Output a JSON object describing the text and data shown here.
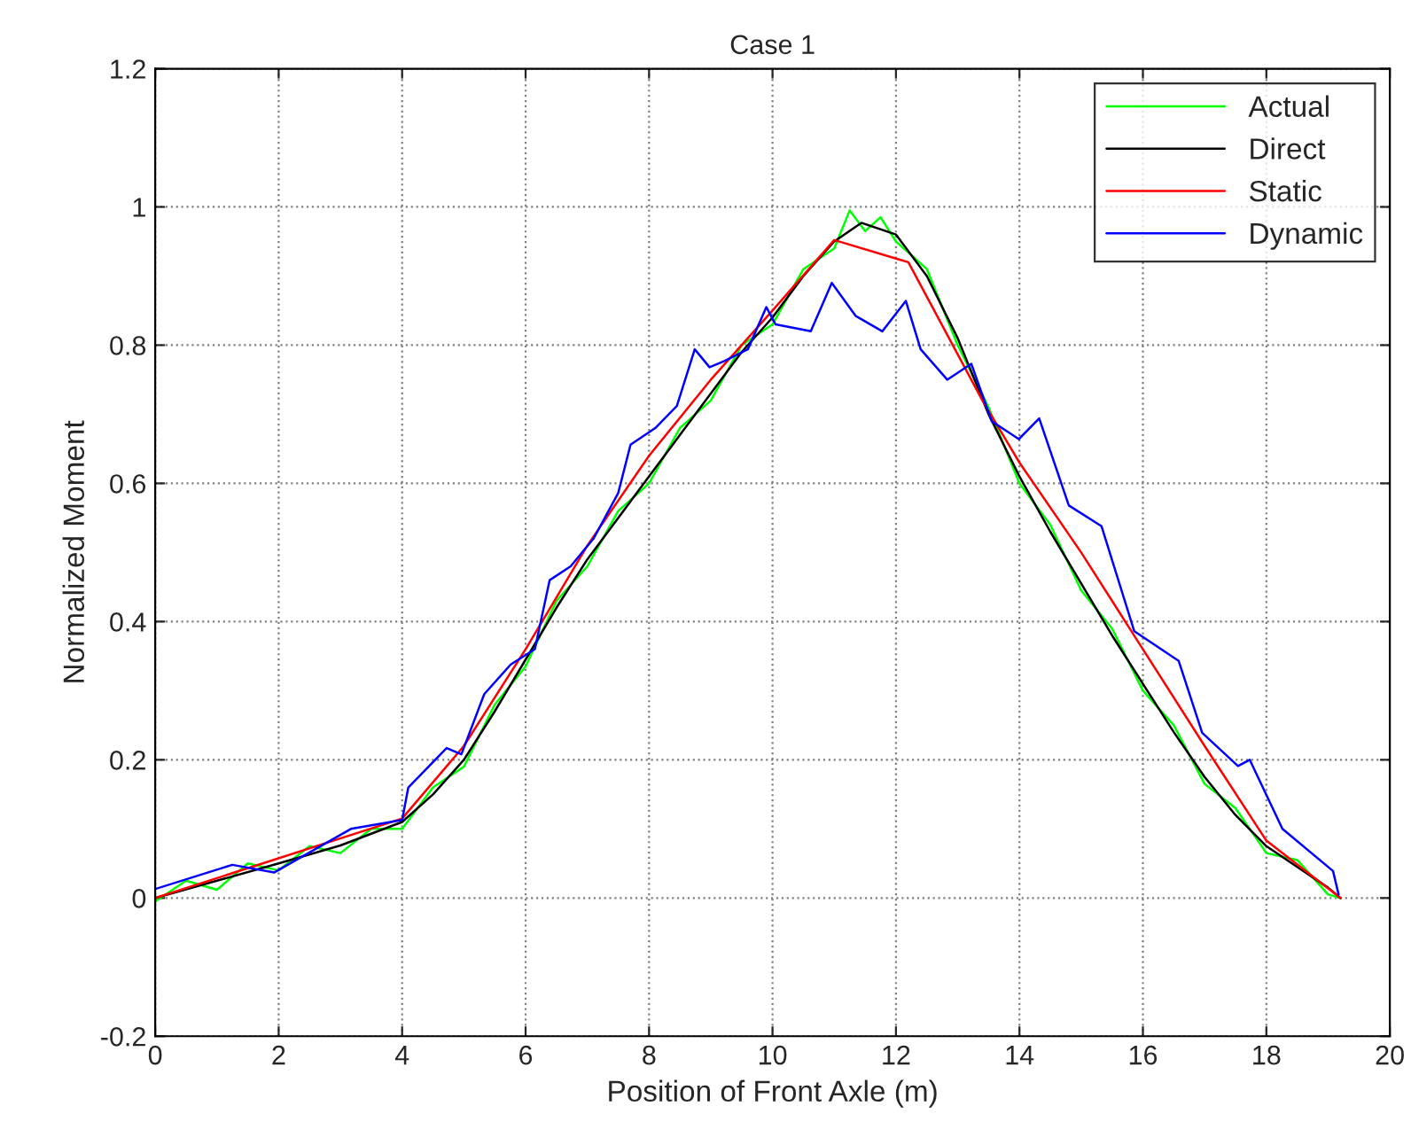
{
  "chart_data": {
    "type": "line",
    "title": "Case 1",
    "xlabel": "Position of Front Axle (m)",
    "ylabel": "Normalized Moment",
    "xlim": [
      0,
      20
    ],
    "xticks": [
      0,
      2,
      4,
      6,
      8,
      10,
      12,
      14,
      16,
      18,
      20
    ],
    "ylim": [
      -0.2,
      1.2
    ],
    "yticks": [
      -0.2,
      0,
      0.2,
      0.4,
      0.6,
      0.8,
      1,
      1.2
    ],
    "grid": true,
    "legend": "top right",
    "line_style": "solid",
    "marker": "none",
    "series": [
      {
        "name": "Actual",
        "color": "#00ff00",
        "x": [
          0,
          0.5,
          1,
          1.5,
          2,
          2.5,
          3,
          3.5,
          4,
          4.5,
          5,
          5.5,
          6,
          6.5,
          7,
          7.5,
          8,
          8.5,
          9,
          9.5,
          10,
          10.5,
          11,
          11.25,
          11.5,
          11.75,
          12,
          12.5,
          13,
          13.5,
          14,
          14.5,
          15,
          15.5,
          16,
          16.5,
          17,
          17.5,
          18,
          18.5,
          19,
          19.2
        ],
        "values": [
          -0.005,
          0.025,
          0.012,
          0.05,
          0.04,
          0.075,
          0.065,
          0.1,
          0.1,
          0.16,
          0.19,
          0.28,
          0.335,
          0.43,
          0.48,
          0.56,
          0.6,
          0.68,
          0.72,
          0.8,
          0.83,
          0.91,
          0.94,
          0.995,
          0.965,
          0.985,
          0.95,
          0.91,
          0.8,
          0.71,
          0.6,
          0.54,
          0.445,
          0.39,
          0.3,
          0.25,
          0.165,
          0.13,
          0.065,
          0.055,
          0.005,
          0.0
        ]
      },
      {
        "name": "Direct",
        "color": "#000000",
        "x": [
          0,
          1,
          2,
          3,
          4,
          4.5,
          5,
          5.5,
          6,
          6.5,
          7,
          7.5,
          8,
          8.5,
          9,
          9.5,
          10,
          10.5,
          11,
          11.44,
          12,
          12.5,
          13,
          13.5,
          14,
          14.5,
          15,
          15.5,
          16,
          16.5,
          17,
          17.5,
          18,
          18.5,
          19,
          19.2
        ],
        "values": [
          0,
          0.025,
          0.05,
          0.076,
          0.11,
          0.15,
          0.2,
          0.27,
          0.345,
          0.42,
          0.49,
          0.55,
          0.61,
          0.67,
          0.73,
          0.79,
          0.84,
          0.9,
          0.95,
          0.977,
          0.96,
          0.9,
          0.81,
          0.7,
          0.61,
          0.53,
          0.455,
          0.38,
          0.31,
          0.24,
          0.175,
          0.12,
          0.075,
          0.045,
          0.015,
          0
        ]
      },
      {
        "name": "Static",
        "color": "#ff0000",
        "x": [
          0,
          4,
          5,
          6,
          7,
          8,
          9,
          10,
          11,
          12.2,
          13.4,
          14,
          15,
          16,
          17,
          18,
          19.2
        ],
        "values": [
          0,
          0.115,
          0.22,
          0.36,
          0.51,
          0.64,
          0.75,
          0.85,
          0.952,
          0.92,
          0.72,
          0.63,
          0.5,
          0.36,
          0.22,
          0.083,
          0
        ]
      },
      {
        "name": "Dynamic",
        "color": "#0000ff",
        "x": [
          0,
          1.25,
          1.93,
          3.17,
          4.0,
          4.1,
          4.72,
          4.96,
          5.33,
          5.76,
          6.15,
          6.39,
          6.73,
          7.1,
          7.5,
          7.7,
          8.1,
          8.45,
          8.74,
          8.98,
          9.22,
          9.6,
          9.9,
          10.05,
          10.62,
          10.96,
          11.35,
          11.78,
          12.16,
          12.4,
          12.83,
          13.22,
          13.55,
          13.99,
          14.32,
          14.8,
          15.33,
          15.86,
          16.58,
          16.96,
          17.54,
          17.73,
          18.26,
          19.08,
          19.17
        ],
        "values": [
          0.013,
          0.048,
          0.037,
          0.1,
          0.113,
          0.16,
          0.217,
          0.208,
          0.295,
          0.338,
          0.36,
          0.46,
          0.48,
          0.52,
          0.586,
          0.656,
          0.68,
          0.712,
          0.794,
          0.768,
          0.777,
          0.794,
          0.855,
          0.83,
          0.82,
          0.89,
          0.842,
          0.82,
          0.864,
          0.794,
          0.75,
          0.773,
          0.69,
          0.664,
          0.694,
          0.568,
          0.538,
          0.386,
          0.343,
          0.239,
          0.191,
          0.2,
          0.1,
          0.039,
          0.005
        ]
      }
    ]
  }
}
